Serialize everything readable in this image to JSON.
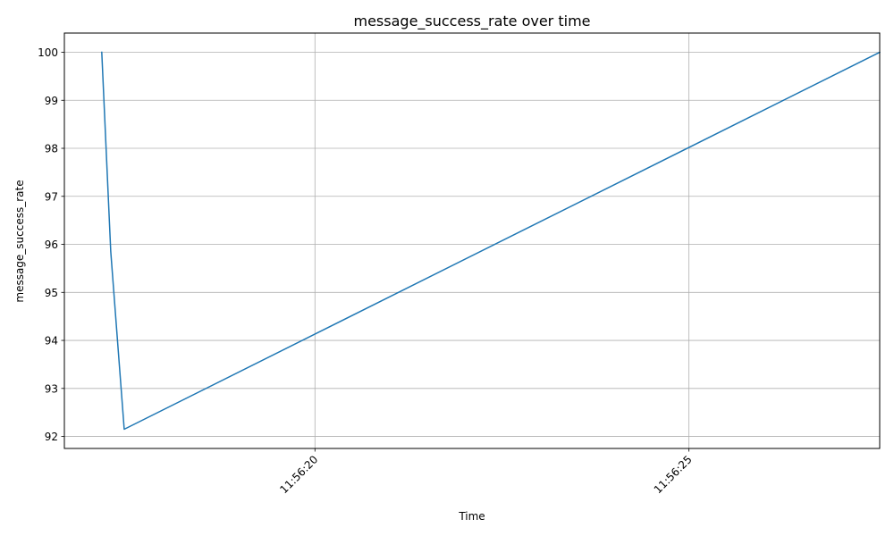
{
  "chart_data": {
    "type": "line",
    "title": "message_success_rate over time",
    "xlabel": "Time",
    "ylabel": "message_success_rate",
    "x_ticks": [
      "11:56:20",
      "11:56:25"
    ],
    "y_ticks": [
      92,
      93,
      94,
      95,
      96,
      97,
      98,
      99,
      100
    ],
    "ylim": [
      91.75,
      100.4
    ],
    "xlim": [
      "11:56:16.65",
      "11:56:27.55"
    ],
    "grid": true,
    "series": [
      {
        "color": "#1f77b4",
        "x": [
          "11:56:17.15",
          "11:56:17.27",
          "11:56:17.45",
          "11:56:27.55"
        ],
        "y": [
          100,
          95.85,
          92.15,
          100
        ]
      }
    ]
  }
}
